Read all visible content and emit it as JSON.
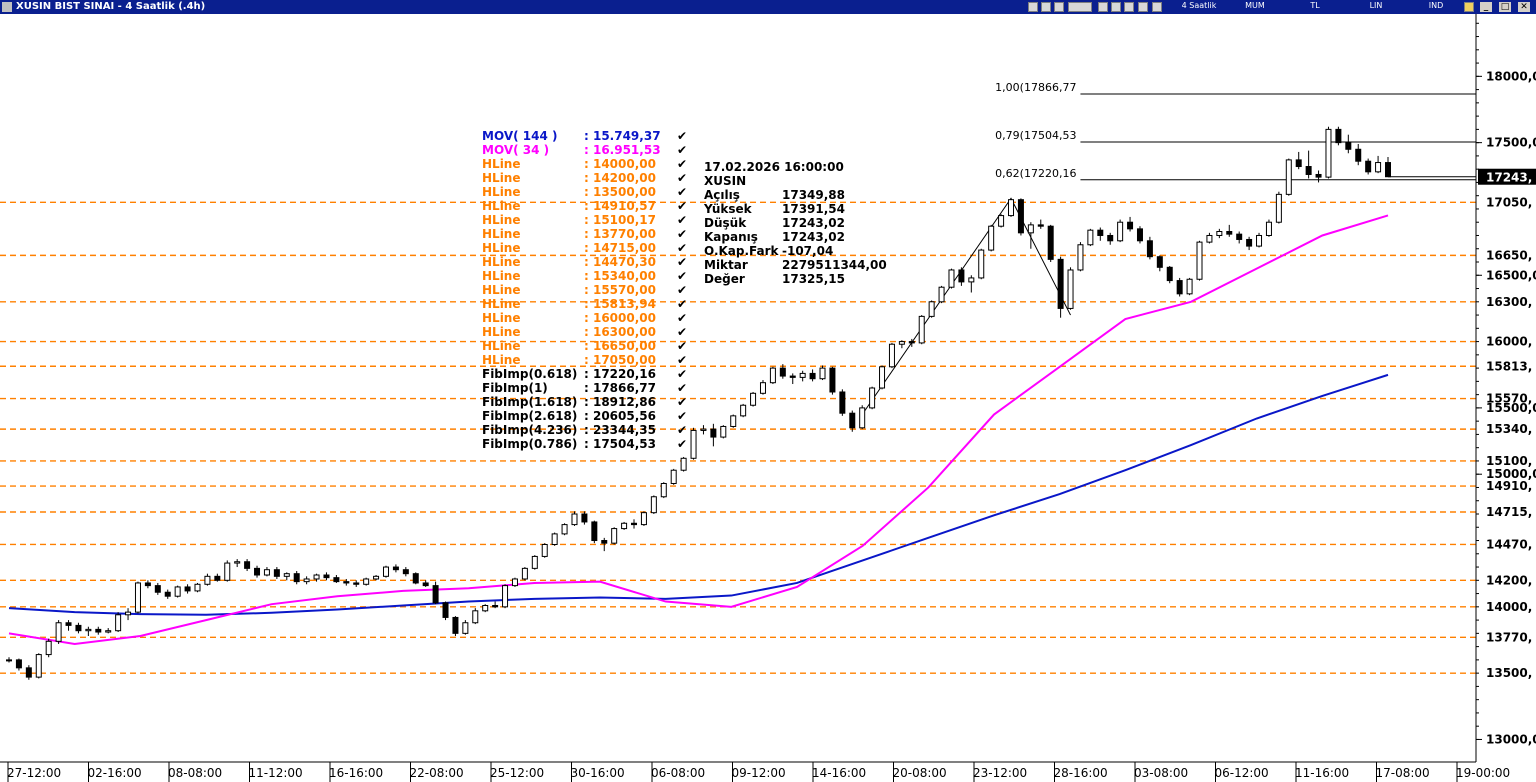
{
  "window": {
    "title": "XUSIN BIST SINAI - 4 Saatlik (.4h)",
    "toolbar": {
      "period": "4 Saatlik",
      "style": "MUM",
      "currency": "TL",
      "scale": "LIN",
      "indicator": "IND"
    },
    "controls": {
      "minimize": "_",
      "maximize": "□",
      "close": "✕"
    }
  },
  "colors": {
    "title_bg": "#0a1f8f",
    "mov144": "#0a17c8",
    "mov34": "#ff00ff",
    "hline": "#ff8000",
    "price_tag": "#000000"
  },
  "legend": [
    {
      "name": "MOV( 144 )",
      "value": ": 15.749,37",
      "color": "#0a17c8"
    },
    {
      "name": "MOV( 34 )",
      "value": ": 16.951,53",
      "color": "#ff00ff"
    },
    {
      "name": "HLine",
      "value": ": 14000,00",
      "color": "#ff8000"
    },
    {
      "name": "HLine",
      "value": ": 14200,00",
      "color": "#ff8000"
    },
    {
      "name": "HLine",
      "value": ": 13500,00",
      "color": "#ff8000"
    },
    {
      "name": "HLine",
      "value": ": 14910,57",
      "color": "#ff8000"
    },
    {
      "name": "HLine",
      "value": ": 15100,17",
      "color": "#ff8000"
    },
    {
      "name": "HLine",
      "value": ": 13770,00",
      "color": "#ff8000"
    },
    {
      "name": "HLine",
      "value": ": 14715,00",
      "color": "#ff8000"
    },
    {
      "name": "HLine",
      "value": ": 14470,30",
      "color": "#ff8000"
    },
    {
      "name": "HLine",
      "value": ": 15340,00",
      "color": "#ff8000"
    },
    {
      "name": "HLine",
      "value": ": 15570,00",
      "color": "#ff8000"
    },
    {
      "name": "HLine",
      "value": ": 15813,94",
      "color": "#ff8000"
    },
    {
      "name": "HLine",
      "value": ": 16000,00",
      "color": "#ff8000"
    },
    {
      "name": "HLine",
      "value": ": 16300,00",
      "color": "#ff8000"
    },
    {
      "name": "HLine",
      "value": ": 16650,00",
      "color": "#ff8000"
    },
    {
      "name": "HLine",
      "value": ": 17050,00",
      "color": "#ff8000"
    },
    {
      "name": "FibImp(0.618)",
      "value": ": 17220,16",
      "color": "#000000"
    },
    {
      "name": "FibImp(1)",
      "value": ": 17866,77",
      "color": "#000000"
    },
    {
      "name": "FibImp(1.618)",
      "value": ": 18912,86",
      "color": "#000000"
    },
    {
      "name": "FibImp(2.618)",
      "value": ": 20605,56",
      "color": "#000000"
    },
    {
      "name": "FibImp(4.236)",
      "value": ": 23344,35",
      "color": "#000000"
    },
    {
      "name": "FibImp(0.786)",
      "value": ": 17504,53",
      "color": "#000000"
    }
  ],
  "ohlc_box": {
    "datetime": "17.02.2026  16:00:00",
    "symbol": "XUSIN",
    "rows": [
      {
        "label": "Açılış",
        "value": "17349,88"
      },
      {
        "label": "Yüksek",
        "value": "17391,54"
      },
      {
        "label": "Düşük",
        "value": "17243,02"
      },
      {
        "label": "Kapanış",
        "value": "17243,02"
      },
      {
        "label": "O.Kap.Fark",
        "value": "-107,04"
      },
      {
        "label": "Miktar",
        "value": "2279511344,00"
      },
      {
        "label": "Değer",
        "value": "17325,15"
      }
    ]
  },
  "chart_data": {
    "type": "candlestick",
    "ylim": [
      12830,
      18470
    ],
    "y_ticks": [
      {
        "value": 18000,
        "label": "18000,0"
      },
      {
        "value": 17500,
        "label": "17500,0"
      },
      {
        "value": 16500,
        "label": "16500,0"
      },
      {
        "value": 15500,
        "label": "15500,0"
      },
      {
        "value": 15000,
        "label": "15000,0"
      },
      {
        "value": 13000,
        "label": "13000,0"
      }
    ],
    "x_ticks": [
      "27-12:00",
      "02-16:00",
      "08-08:00",
      "11-12:00",
      "16-16:00",
      "22-08:00",
      "25-12:00",
      "30-16:00",
      "06-08:00",
      "09-12:00",
      "14-16:00",
      "20-08:00",
      "23-12:00",
      "28-16:00",
      "03-08:00",
      "06-12:00",
      "11-16:00",
      "17-08:00",
      "19-00:00"
    ],
    "hlines": [
      {
        "value": 17050.0,
        "label": "17050,"
      },
      {
        "value": 16650.0,
        "label": "16650,"
      },
      {
        "value": 16300.0,
        "label": "16300,"
      },
      {
        "value": 16000.0,
        "label": "16000,"
      },
      {
        "value": 15813.94,
        "label": "15813,"
      },
      {
        "value": 15570.0,
        "label": "15570,"
      },
      {
        "value": 15340.0,
        "label": "15340,"
      },
      {
        "value": 15100.17,
        "label": "15100,"
      },
      {
        "value": 14910.57,
        "label": "14910,"
      },
      {
        "value": 14715.0,
        "label": "14715,"
      },
      {
        "value": 14470.3,
        "label": "14470,"
      },
      {
        "value": 14200.0,
        "label": "14200,"
      },
      {
        "value": 14000.0,
        "label": "14000,"
      },
      {
        "value": 13770.0,
        "label": "13770,"
      },
      {
        "value": 13500.0,
        "label": "13500,"
      }
    ],
    "fib_levels": [
      {
        "value": 17866.77,
        "label": "1,00(17866,77"
      },
      {
        "value": 17504.53,
        "label": "0,79(17504,53"
      },
      {
        "value": 17220.16,
        "label": "0,62(17220,16"
      }
    ],
    "fib_swing": [
      [
        15450,
        15320
      ],
      [
        17080,
        17060
      ],
      [
        16200,
        16190
      ]
    ],
    "last_price": {
      "value": 17243.02,
      "label": "17243,"
    },
    "series": [
      {
        "name": "MOV( 144 )",
        "values": [
          13990,
          13960,
          13945,
          13940,
          13955,
          13980,
          14010,
          14040,
          14060,
          14070,
          14060,
          14085,
          14180,
          14350,
          14520,
          14690,
          14850,
          15030,
          15220,
          15420,
          15590,
          15749
        ]
      },
      {
        "name": "MOV( 34 )",
        "values": [
          13800,
          13720,
          13780,
          13900,
          14020,
          14080,
          14120,
          14140,
          14180,
          14190,
          14040,
          14000,
          14150,
          14460,
          14900,
          15450,
          15810,
          16170,
          16300,
          16550,
          16800,
          16951
        ]
      }
    ],
    "candles": [
      [
        13600,
        13620,
        13580,
        13600
      ],
      [
        13600,
        13610,
        13520,
        13540
      ],
      [
        13540,
        13560,
        13450,
        13470
      ],
      [
        13470,
        13650,
        13460,
        13640
      ],
      [
        13640,
        13760,
        13620,
        13740
      ],
      [
        13740,
        13900,
        13720,
        13880
      ],
      [
        13880,
        13900,
        13820,
        13860
      ],
      [
        13860,
        13880,
        13800,
        13820
      ],
      [
        13820,
        13850,
        13780,
        13830
      ],
      [
        13830,
        13850,
        13790,
        13810
      ],
      [
        13810,
        13840,
        13800,
        13820
      ],
      [
        13820,
        13960,
        13810,
        13940
      ],
      [
        13940,
        13990,
        13900,
        13960
      ],
      [
        13960,
        14190,
        13950,
        14180
      ],
      [
        14180,
        14200,
        14140,
        14160
      ],
      [
        14160,
        14180,
        14090,
        14110
      ],
      [
        14110,
        14130,
        14060,
        14080
      ],
      [
        14080,
        14160,
        14070,
        14150
      ],
      [
        14150,
        14170,
        14100,
        14120
      ],
      [
        14120,
        14180,
        14110,
        14170
      ],
      [
        14170,
        14250,
        14160,
        14230
      ],
      [
        14230,
        14250,
        14190,
        14200
      ],
      [
        14200,
        14350,
        14190,
        14330
      ],
      [
        14330,
        14360,
        14300,
        14340
      ],
      [
        14340,
        14360,
        14270,
        14290
      ],
      [
        14290,
        14310,
        14220,
        14240
      ],
      [
        14240,
        14300,
        14230,
        14280
      ],
      [
        14280,
        14300,
        14210,
        14230
      ],
      [
        14230,
        14260,
        14200,
        14250
      ],
      [
        14250,
        14270,
        14170,
        14190
      ],
      [
        14190,
        14230,
        14170,
        14210
      ],
      [
        14210,
        14250,
        14190,
        14240
      ],
      [
        14240,
        14260,
        14200,
        14220
      ],
      [
        14220,
        14240,
        14180,
        14190
      ],
      [
        14190,
        14210,
        14160,
        14180
      ],
      [
        14180,
        14200,
        14150,
        14170
      ],
      [
        14170,
        14220,
        14160,
        14210
      ],
      [
        14210,
        14240,
        14200,
        14230
      ],
      [
        14230,
        14310,
        14220,
        14300
      ],
      [
        14300,
        14320,
        14260,
        14280
      ],
      [
        14280,
        14300,
        14230,
        14250
      ],
      [
        14250,
        14260,
        14170,
        14180
      ],
      [
        14180,
        14200,
        14150,
        14160
      ],
      [
        14160,
        14190,
        14020,
        14030
      ],
      [
        14030,
        14040,
        13900,
        13920
      ],
      [
        13920,
        13930,
        13780,
        13800
      ],
      [
        13800,
        13900,
        13790,
        13880
      ],
      [
        13880,
        13990,
        13870,
        13970
      ],
      [
        13970,
        14020,
        13960,
        14010
      ],
      [
        14010,
        14040,
        13990,
        14000
      ],
      [
        14000,
        14170,
        13990,
        14160
      ],
      [
        14160,
        14220,
        14150,
        14210
      ],
      [
        14210,
        14300,
        14200,
        14290
      ],
      [
        14290,
        14390,
        14280,
        14380
      ],
      [
        14380,
        14480,
        14370,
        14470
      ],
      [
        14470,
        14560,
        14460,
        14550
      ],
      [
        14550,
        14630,
        14540,
        14620
      ],
      [
        14620,
        14720,
        14610,
        14700
      ],
      [
        14700,
        14720,
        14620,
        14640
      ],
      [
        14640,
        14650,
        14480,
        14500
      ],
      [
        14500,
        14520,
        14420,
        14480
      ],
      [
        14480,
        14600,
        14470,
        14590
      ],
      [
        14590,
        14640,
        14580,
        14630
      ],
      [
        14630,
        14660,
        14590,
        14620
      ],
      [
        14620,
        14720,
        14610,
        14710
      ],
      [
        14710,
        14840,
        14700,
        14830
      ],
      [
        14830,
        14940,
        14820,
        14930
      ],
      [
        14930,
        15040,
        14920,
        15030
      ],
      [
        15030,
        15130,
        15020,
        15120
      ],
      [
        15120,
        15350,
        15110,
        15330
      ],
      [
        15330,
        15370,
        15300,
        15340
      ],
      [
        15340,
        15380,
        15210,
        15280
      ],
      [
        15280,
        15370,
        15270,
        15360
      ],
      [
        15360,
        15450,
        15350,
        15440
      ],
      [
        15440,
        15530,
        15430,
        15520
      ],
      [
        15520,
        15620,
        15510,
        15610
      ],
      [
        15610,
        15710,
        15600,
        15690
      ],
      [
        15690,
        15810,
        15680,
        15800
      ],
      [
        15800,
        15830,
        15720,
        15740
      ],
      [
        15740,
        15760,
        15680,
        15730
      ],
      [
        15730,
        15780,
        15700,
        15760
      ],
      [
        15760,
        15790,
        15700,
        15720
      ],
      [
        15720,
        15820,
        15710,
        15800
      ],
      [
        15800,
        15810,
        15600,
        15620
      ],
      [
        15620,
        15640,
        15440,
        15460
      ],
      [
        15460,
        15480,
        15320,
        15350
      ],
      [
        15350,
        15520,
        15340,
        15500
      ],
      [
        15500,
        15660,
        15490,
        15650
      ],
      [
        15650,
        15820,
        15640,
        15810
      ],
      [
        15810,
        15990,
        15800,
        15980
      ],
      [
        15980,
        16010,
        15950,
        16000
      ],
      [
        16000,
        16020,
        15960,
        15990
      ],
      [
        15990,
        16200,
        15980,
        16190
      ],
      [
        16190,
        16310,
        16180,
        16300
      ],
      [
        16300,
        16420,
        16290,
        16410
      ],
      [
        16410,
        16550,
        16400,
        16540
      ],
      [
        16540,
        16560,
        16420,
        16450
      ],
      [
        16450,
        16500,
        16370,
        16480
      ],
      [
        16480,
        16700,
        16470,
        16690
      ],
      [
        16690,
        16880,
        16680,
        16870
      ],
      [
        16870,
        16960,
        16860,
        16950
      ],
      [
        16950,
        17080,
        16940,
        17070
      ],
      [
        17070,
        17080,
        16800,
        16820
      ],
      [
        16820,
        16900,
        16700,
        16880
      ],
      [
        16880,
        16920,
        16850,
        16870
      ],
      [
        16870,
        16880,
        16600,
        16620
      ],
      [
        16620,
        16640,
        16180,
        16250
      ],
      [
        16250,
        16560,
        16240,
        16540
      ],
      [
        16540,
        16750,
        16530,
        16730
      ],
      [
        16730,
        16850,
        16720,
        16840
      ],
      [
        16840,
        16860,
        16760,
        16800
      ],
      [
        16800,
        16820,
        16730,
        16760
      ],
      [
        16760,
        16920,
        16750,
        16900
      ],
      [
        16900,
        16940,
        16830,
        16850
      ],
      [
        16850,
        16870,
        16740,
        16760
      ],
      [
        16760,
        16790,
        16620,
        16640
      ],
      [
        16640,
        16650,
        16530,
        16560
      ],
      [
        16560,
        16570,
        16440,
        16460
      ],
      [
        16460,
        16480,
        16340,
        16360
      ],
      [
        16360,
        16480,
        16350,
        16470
      ],
      [
        16470,
        16760,
        16460,
        16750
      ],
      [
        16750,
        16820,
        16740,
        16800
      ],
      [
        16800,
        16850,
        16780,
        16830
      ],
      [
        16830,
        16880,
        16790,
        16810
      ],
      [
        16810,
        16830,
        16740,
        16770
      ],
      [
        16770,
        16790,
        16690,
        16720
      ],
      [
        16720,
        16820,
        16710,
        16800
      ],
      [
        16800,
        16920,
        16790,
        16900
      ],
      [
        16900,
        17130,
        16890,
        17110
      ],
      [
        17110,
        17380,
        17100,
        17370
      ],
      [
        17370,
        17430,
        17300,
        17320
      ],
      [
        17320,
        17440,
        17230,
        17260
      ],
      [
        17260,
        17290,
        17200,
        17240
      ],
      [
        17240,
        17620,
        17230,
        17600
      ],
      [
        17600,
        17620,
        17480,
        17500
      ],
      [
        17500,
        17560,
        17420,
        17450
      ],
      [
        17450,
        17490,
        17330,
        17360
      ],
      [
        17360,
        17380,
        17260,
        17280
      ],
      [
        17280,
        17400,
        17270,
        17350
      ],
      [
        17349.88,
        17391.54,
        17243.02,
        17243.02
      ]
    ]
  }
}
